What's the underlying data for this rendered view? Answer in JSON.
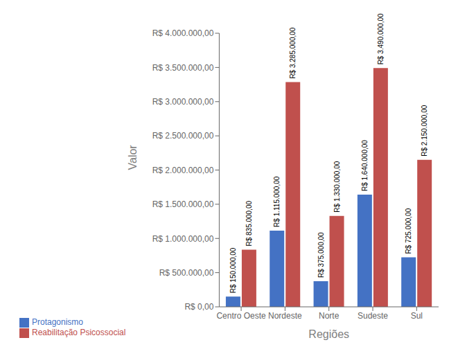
{
  "chart_data": {
    "type": "bar",
    "categories": [
      "Centro Oeste",
      "Nordeste",
      "Norte",
      "Sudeste",
      "Sul"
    ],
    "series": [
      {
        "name": "Protagonismo",
        "color": "#4472C4",
        "values": [
          150000,
          1115000,
          375000,
          1640000,
          725000
        ],
        "value_labels": [
          "R$ 150.000,00",
          "R$ 1.115.000,00",
          "R$ 375.000,00",
          "R$ 1.640.000,00",
          "R$ 725.000,00"
        ]
      },
      {
        "name": "Reabilitação Psicossocial",
        "color": "#C0504D",
        "values": [
          835000,
          3285000,
          1330000,
          3490000,
          2150000
        ],
        "value_labels": [
          "R$ 835.000,00",
          "R$ 3.285.000,00",
          "R$ 1.330.000,00",
          "R$ 3.490.000,00",
          "R$ 2.150.000,00"
        ]
      }
    ],
    "xlabel": "Regiões",
    "ylabel": "Valor",
    "ylim": [
      0,
      4000000
    ],
    "yticks": [
      {
        "value": 0,
        "label": "R$ 0,00"
      },
      {
        "value": 500000,
        "label": "R$ 500.000,00"
      },
      {
        "value": 1000000,
        "label": "R$ 1.000.000,00"
      },
      {
        "value": 1500000,
        "label": "R$ 1.500.000,00"
      },
      {
        "value": 2000000,
        "label": "R$ 2.000.000,00"
      },
      {
        "value": 2500000,
        "label": "R$ 2.500.000,00"
      },
      {
        "value": 3000000,
        "label": "R$ 3.000.000,00"
      },
      {
        "value": 3500000,
        "label": "R$ 3.500.000,00"
      },
      {
        "value": 4000000,
        "label": "R$ 4.000.000,00"
      }
    ],
    "grid": false,
    "legend": "lower left",
    "data_labels": true
  }
}
